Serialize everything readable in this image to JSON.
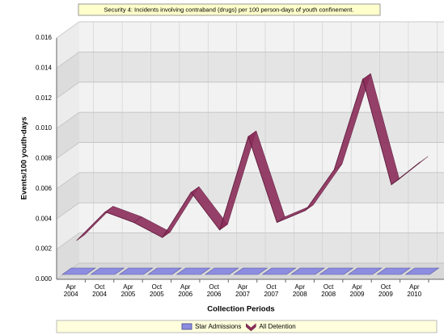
{
  "chart_data": {
    "type": "line3d",
    "title": "Security 4: Incidents involving contraband (drugs) per 100 person-days of youth confinement.",
    "x_label": "Collection Periods",
    "y_label": "Events/100 youth-days",
    "categories": [
      "Apr 2004",
      "Oct 2004",
      "Apr 2005",
      "Oct 2005",
      "Apr 2006",
      "Oct 2006",
      "Apr 2007",
      "Oct 2007",
      "Apr 2008",
      "Oct 2008",
      "Apr 2009",
      "Oct 2009",
      "Apr 2010"
    ],
    "series": [
      {
        "name": "Star Admissions",
        "color": "#8c8ce0",
        "style": "bar",
        "values": [
          0,
          0,
          0,
          0,
          0,
          0,
          0,
          0,
          0,
          0,
          0,
          0,
          0
        ]
      },
      {
        "name": "All Detention",
        "color": "#8b2c5a",
        "style": "ribbon",
        "values": [
          0.0023,
          0.0042,
          0.0035,
          0.0025,
          0.0055,
          0.003,
          0.0092,
          0.0035,
          0.0043,
          0.007,
          0.013,
          0.006,
          0.0075
        ]
      }
    ],
    "ylim": [
      0,
      0.016
    ],
    "yticks": [
      {
        "value": 0,
        "label": "0.000"
      },
      {
        "value": 0.002,
        "label": "0.002"
      },
      {
        "value": 0.004,
        "label": "0.004"
      },
      {
        "value": 0.006,
        "label": "0.006"
      },
      {
        "value": 0.008,
        "label": "0.008"
      },
      {
        "value": 0.01,
        "label": "0.010"
      },
      {
        "value": 0.012,
        "label": "0.012"
      },
      {
        "value": 0.014,
        "label": "0.014"
      },
      {
        "value": 0.016,
        "label": "0.016"
      }
    ],
    "grid": true
  }
}
